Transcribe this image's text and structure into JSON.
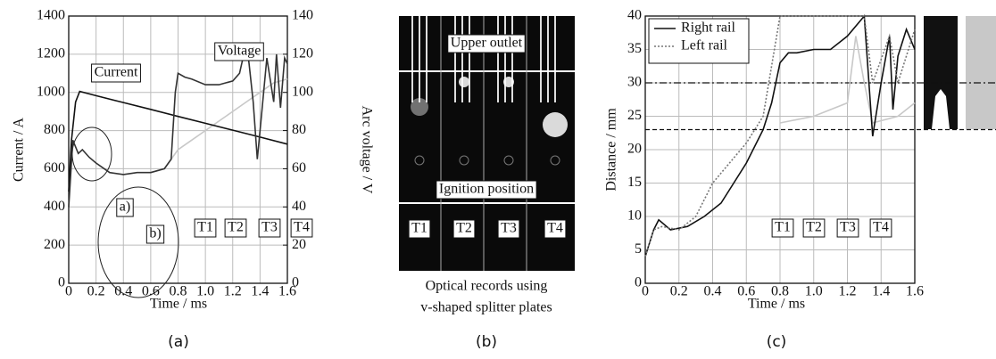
{
  "chart_data": [
    {
      "type": "line",
      "caption": "(a)",
      "xlabel": "Time / ms",
      "ylabel": "Current / A",
      "y2label": "Arc voltage / V",
      "xlim": [
        0,
        1.6
      ],
      "xticks": [
        0,
        0.2,
        0.4,
        0.6,
        0.8,
        {
          "value": 1,
          "label": "1.0"
        },
        1.2,
        1.4,
        1.6
      ],
      "ylim": [
        0,
        1400
      ],
      "yticks": [
        0,
        200,
        400,
        600,
        800,
        1000,
        1200,
        1400
      ],
      "y2lim": [
        0,
        140
      ],
      "y2ticks": [
        0,
        20,
        40,
        60,
        80,
        100,
        120,
        140
      ],
      "grid": true,
      "series": [
        {
          "color": "#c8c8c8",
          "axis": "y2",
          "x": [
            0.6,
            0.7,
            0.8,
            0.9,
            1.0,
            1.1,
            1.2,
            1.3,
            1.4,
            1.5,
            1.6
          ],
          "values": [
            58,
            60,
            70,
            75,
            80,
            85,
            90,
            95,
            100,
            105,
            107
          ]
        },
        {
          "color": "#111111",
          "x": [
            0,
            0.02,
            0.05,
            0.08,
            0.2,
            0.4,
            0.6,
            0.8,
            1.0,
            1.2,
            1.4,
            1.6
          ],
          "values": [
            480,
            750,
            950,
            1005,
            983,
            947,
            911,
            874,
            838,
            802,
            766,
            729
          ]
        },
        {
          "color": "#333333",
          "axis": "y2",
          "x": [
            0,
            0.03,
            0.07,
            0.1,
            0.15,
            0.2,
            0.3,
            0.4,
            0.5,
            0.6,
            0.7,
            0.75,
            0.78,
            0.8,
            0.85,
            0.9,
            1.0,
            1.1,
            1.2,
            1.25,
            1.3,
            1.32,
            1.35,
            1.38,
            1.4,
            1.45,
            1.5,
            1.52,
            1.55,
            1.58,
            1.6
          ],
          "values": [
            40,
            75,
            68,
            70,
            66,
            63,
            58,
            57,
            58,
            58,
            60,
            65,
            100,
            110,
            108,
            107,
            104,
            104,
            106,
            110,
            126,
            115,
            95,
            65,
            80,
            118,
            95,
            120,
            92,
            118,
            115
          ]
        }
      ],
      "annotations": [
        "Current",
        "Voltage",
        "a)",
        "b)",
        "T1",
        "T2",
        "T3",
        "T4"
      ]
    },
    {
      "type": "line",
      "caption": "(c)",
      "xlabel": "Time / ms",
      "ylabel": "Distance / mm",
      "xlim": [
        0,
        1.6
      ],
      "xticks": [
        0,
        0.2,
        0.4,
        0.6,
        0.8,
        {
          "value": 1,
          "label": "1.0"
        },
        1.2,
        1.4,
        1.6
      ],
      "ylim": [
        0,
        40
      ],
      "yticks": [
        0,
        5,
        10,
        15,
        20,
        25,
        30,
        35,
        40
      ],
      "grid": true,
      "legend": "upper left",
      "hlines": [
        {
          "value": 30,
          "style": "dashdot"
        },
        {
          "value": 23,
          "style": "dashed"
        }
      ],
      "series": [
        {
          "color": "#c8c8c8",
          "x": [
            0.8,
            1.0,
            1.2,
            1.25,
            1.3,
            1.35,
            1.5,
            1.6
          ],
          "values": [
            24,
            25,
            27,
            37,
            30,
            24,
            25,
            27
          ]
        },
        {
          "name": "Right rail",
          "color": "#111111",
          "style": "solid",
          "x": [
            0,
            0.05,
            0.08,
            0.15,
            0.25,
            0.35,
            0.45,
            0.5,
            0.6,
            0.7,
            0.75,
            0.8,
            0.85,
            0.9,
            1.0,
            1.1,
            1.2,
            1.3,
            1.35,
            1.4,
            1.45,
            1.47,
            1.5,
            1.55,
            1.6
          ],
          "values": [
            4,
            8,
            9.5,
            8,
            8.5,
            10,
            12,
            14,
            18,
            23,
            27,
            33,
            34.5,
            34.5,
            35,
            35,
            37,
            40,
            22,
            30,
            37,
            26,
            34,
            38,
            35
          ]
        },
        {
          "name": "Left rail",
          "color": "#777777",
          "style": "dotted",
          "x": [
            0,
            0.05,
            0.1,
            0.2,
            0.3,
            0.4,
            0.5,
            0.6,
            0.65,
            0.7,
            0.8,
            1.0,
            1.2,
            1.3,
            1.35,
            1.45,
            1.5,
            1.6
          ],
          "values": [
            4,
            8,
            8.5,
            8,
            10,
            15,
            18,
            21,
            23,
            25,
            40,
            40,
            40,
            40,
            30,
            37,
            30,
            38
          ]
        }
      ],
      "annotations": [
        "T1",
        "T2",
        "T3",
        "T4"
      ]
    }
  ],
  "panel_b": {
    "caption": "(b)",
    "labels": [
      "Upper outlet",
      "Ignition position",
      "T1",
      "T2",
      "T3",
      "T4"
    ],
    "description": [
      "Optical records using",
      "v-shaped splitter plates"
    ]
  }
}
